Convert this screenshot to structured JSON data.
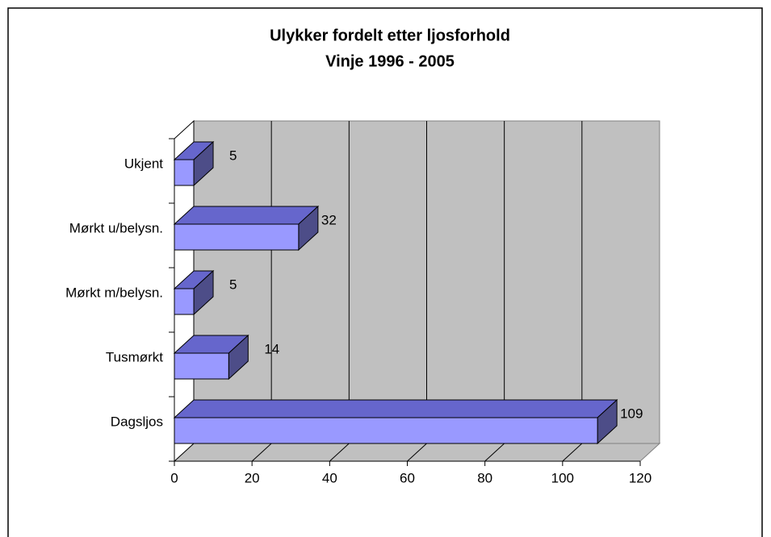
{
  "chart_data": {
    "type": "bar3d_horizontal",
    "title": [
      "Ulykker fordelt etter ljosforhold",
      "Vinje 1996 - 2005"
    ],
    "categories": [
      "Dagsljos",
      "Tusmørkt",
      "Mørkt m/belysn.",
      "Mørkt u/belysn.",
      "Ukjent"
    ],
    "values": [
      109,
      14,
      5,
      32,
      5
    ],
    "color": "#9999ff",
    "xlim": [
      0,
      120
    ],
    "xticks": [
      0,
      20,
      40,
      60,
      80,
      100,
      120
    ],
    "grid": true
  }
}
